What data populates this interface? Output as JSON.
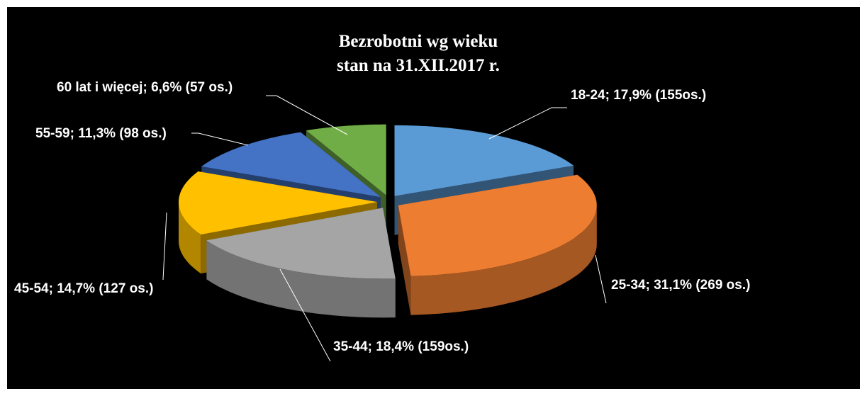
{
  "chart_data": {
    "type": "pie",
    "title": "Bezrobotni wg wieku",
    "subtitle": "stan na 31.XII.2017 r.",
    "values": [
      17.9,
      31.1,
      18.4,
      14.7,
      11.3,
      6.6
    ],
    "counts": [
      155,
      269,
      159,
      127,
      98,
      57
    ],
    "value_labels": [
      "18-24; 17,9% (155os.)",
      "25-34; 31,1% (269 os.)",
      "35-44; 18,4% (159os.)",
      "45-54; 14,7% (127 os.)",
      "55-59; 11,3% (98 os.)",
      "60 lat i więcej; 6,6% (57 os.)"
    ],
    "colors": [
      "#5b9bd5",
      "#ed7d31",
      "#a5a5a5",
      "#ffc000",
      "#4472c4",
      "#70ad47"
    ]
  }
}
